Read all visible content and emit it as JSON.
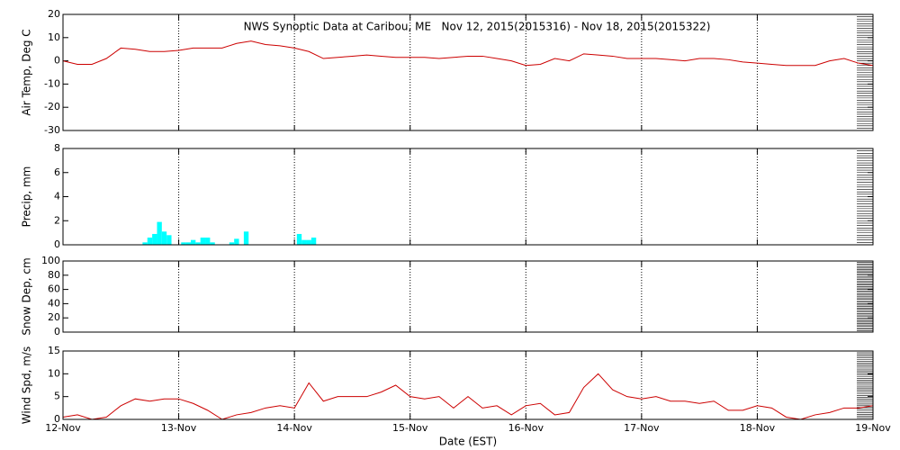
{
  "chart_data": [
    {
      "type": "line",
      "title": "NWS Synoptic Data at Caribou, ME   Nov 12, 2015(2015316) - Nov 18, 2015(2015322)",
      "ylabel": "Air Temp, Deg C",
      "ylim": [
        -30,
        20
      ],
      "yticks": [
        -30,
        -20,
        -10,
        0,
        10,
        20
      ],
      "xlim": [
        0,
        168
      ],
      "grid": "x",
      "series": [
        {
          "color": "#cc0000",
          "x": [
            0,
            3,
            6,
            9,
            12,
            15,
            18,
            21,
            24,
            27,
            30,
            33,
            36,
            39,
            42,
            45,
            48,
            51,
            54,
            57,
            60,
            63,
            66,
            69,
            72,
            75,
            78,
            81,
            84,
            87,
            90,
            93,
            96,
            99,
            102,
            105,
            108,
            111,
            114,
            117,
            120,
            123,
            126,
            129,
            132,
            135,
            138,
            141,
            144,
            147,
            150,
            153,
            156,
            159,
            162,
            165,
            168
          ],
          "values": [
            0,
            -1.5,
            -1.5,
            1,
            5.5,
            5,
            4,
            4,
            4.5,
            5.5,
            5.5,
            5.5,
            7.5,
            8.5,
            7,
            6.5,
            5.5,
            4,
            1,
            1.5,
            2,
            2.5,
            2,
            1.5,
            1.5,
            1.5,
            1,
            1.5,
            2,
            2,
            1,
            0,
            -2,
            -1.5,
            1,
            0,
            3,
            2.5,
            2,
            1,
            1,
            1,
            0.5,
            0,
            1,
            1,
            0.5,
            -0.5,
            -1,
            -1.5,
            -2,
            -2,
            -2,
            0,
            1,
            -1,
            -2
          ]
        }
      ]
    },
    {
      "type": "bar",
      "ylabel": "Precip, mm",
      "ylim": [
        0,
        8
      ],
      "yticks": [
        0,
        2,
        4,
        6,
        8
      ],
      "xlim": [
        0,
        168
      ],
      "grid": "x",
      "series": [
        {
          "color": "#00ffff",
          "x": [
            17,
            18,
            19,
            20,
            21,
            22,
            25,
            26,
            27,
            28,
            29,
            30,
            31,
            35,
            36,
            38,
            49,
            50,
            51,
            52
          ],
          "values": [
            0.2,
            0.6,
            0.9,
            1.9,
            1.1,
            0.8,
            0.2,
            0.2,
            0.4,
            0.2,
            0.6,
            0.6,
            0.2,
            0.2,
            0.5,
            1.1,
            0.9,
            0.4,
            0.4,
            0.6
          ]
        }
      ]
    },
    {
      "type": "line",
      "ylabel": "Snow Dep, cm",
      "ylim": [
        0,
        100
      ],
      "yticks": [
        0,
        20,
        40,
        60,
        80,
        100
      ],
      "xlim": [
        0,
        168
      ],
      "grid": "x",
      "series": []
    },
    {
      "type": "line",
      "ylabel": "Wind Spd, m/s",
      "xlabel": "Date (EST)",
      "ylim": [
        0,
        15
      ],
      "yticks": [
        0,
        5,
        10,
        15
      ],
      "xlim": [
        0,
        168
      ],
      "grid": "x",
      "xticks": [
        {
          "value": 0,
          "label": "12-Nov"
        },
        {
          "value": 24,
          "label": "13-Nov"
        },
        {
          "value": 48,
          "label": "14-Nov"
        },
        {
          "value": 72,
          "label": "15-Nov"
        },
        {
          "value": 96,
          "label": "16-Nov"
        },
        {
          "value": 120,
          "label": "17-Nov"
        },
        {
          "value": 144,
          "label": "18-Nov"
        },
        {
          "value": 168,
          "label": "19-Nov"
        }
      ],
      "series": [
        {
          "color": "#cc0000",
          "x": [
            0,
            3,
            6,
            9,
            12,
            15,
            18,
            21,
            24,
            27,
            30,
            33,
            36,
            39,
            42,
            45,
            48,
            51,
            54,
            57,
            60,
            63,
            66,
            69,
            72,
            75,
            78,
            81,
            84,
            87,
            90,
            93,
            96,
            99,
            102,
            105,
            108,
            111,
            114,
            117,
            120,
            123,
            126,
            129,
            132,
            135,
            138,
            141,
            144,
            147,
            150,
            153,
            156,
            159,
            162,
            165,
            168
          ],
          "values": [
            0.5,
            1,
            0,
            0.5,
            3,
            4.5,
            4,
            4.5,
            4.5,
            3.5,
            2,
            0,
            1,
            1.5,
            2.5,
            3,
            2.5,
            8,
            4,
            5,
            5,
            5,
            6,
            7.5,
            5,
            4.5,
            5,
            2.5,
            5,
            2.5,
            3,
            1,
            3,
            3.5,
            1,
            1.5,
            7,
            10,
            6.5,
            5,
            4.5,
            5,
            4,
            4,
            3.5,
            4,
            2,
            2,
            3,
            2.5,
            0.5,
            0,
            1,
            1.5,
            2.5,
            2.5,
            3
          ]
        }
      ]
    }
  ]
}
